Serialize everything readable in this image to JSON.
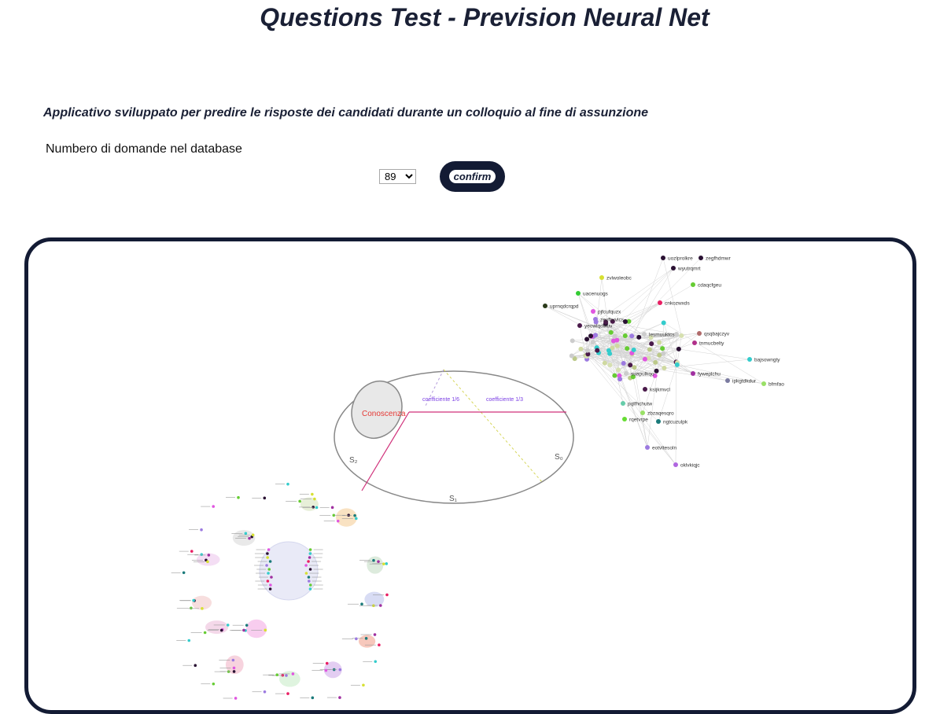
{
  "header": {
    "title": "Questions Test - Prevision Neural Net",
    "subtitle": "Applicativo sviluppato per predire le risposte dei candidati durante un colloquio al fine di assunzione"
  },
  "controls": {
    "count_label": "Numbero di domande nel database",
    "count_selected": "89",
    "confirm_label": "confirm"
  },
  "diagram": {
    "knowledge_label": "Conoscenza",
    "coef_left": "coefficiente 1/6",
    "coef_right": "coefficiente 1/3",
    "s0": "S₀",
    "s1": "S₁",
    "s2": "S₂"
  },
  "network_graph": {
    "visible_labels": [
      {
        "label": "uozlprolkre",
        "color": "#2a1133"
      },
      {
        "label": "zegfhdmwr",
        "color": "#2a1133"
      },
      {
        "label": "wyutrqmrt",
        "color": "#2a1133"
      },
      {
        "label": "zvlwoleobc",
        "color": "#d6e033"
      },
      {
        "label": "cdaqcfgeu",
        "color": "#66cc33"
      },
      {
        "label": "uacenuogs",
        "color": "#33cc33"
      },
      {
        "label": "cnkozwxds",
        "color": "#e91e63"
      },
      {
        "label": "uprnqdcrqpd",
        "color": "#2a3a1a"
      },
      {
        "label": "pjfcufquzx",
        "color": "#e056e0"
      },
      {
        "label": "zeyfhvvlcs",
        "color": "#9c7ae0"
      },
      {
        "label": "qsqbajczyv",
        "color": "#b06a6a"
      },
      {
        "label": "yeowlqdwuv",
        "color": "#4a1a4a"
      },
      {
        "label": "lesmuuktcs",
        "color": "#cccccc"
      },
      {
        "label": "tnmucbelty",
        "color": "#b0308a"
      },
      {
        "label": "bajsowngty",
        "color": "#33cccc"
      },
      {
        "label": "fyweplchu",
        "color": "#a030a0"
      },
      {
        "label": "ipkgtdkdur",
        "color": "#7a7aa0"
      },
      {
        "label": "bfmfao",
        "color": "#99e066"
      },
      {
        "label": "pqlfhchutw",
        "color": "#66ccaa"
      },
      {
        "label": "zbzaqesqro",
        "color": "#99e066"
      },
      {
        "label": "rqetvrpe",
        "color": "#66dd33"
      },
      {
        "label": "ngtcuzulpk",
        "color": "#1a7a7a"
      },
      {
        "label": "eotvltesoln",
        "color": "#9c7ae0"
      },
      {
        "label": "oklvkiqjc",
        "color": "#b066e0"
      },
      {
        "label": "ksijkmvcl",
        "color": "#4a1a4a"
      },
      {
        "label": "suapulkqo",
        "color": "#cccccc"
      }
    ]
  }
}
